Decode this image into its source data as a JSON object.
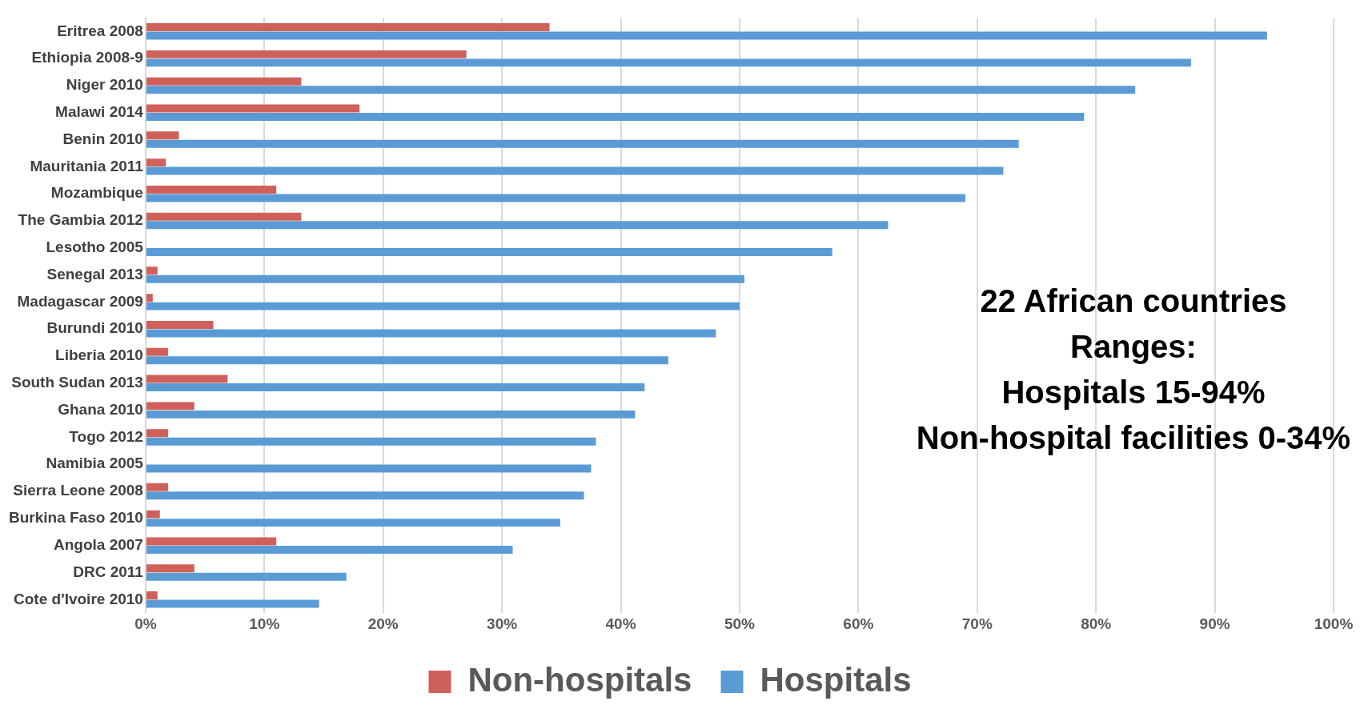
{
  "chart_data": {
    "type": "bar",
    "orientation": "horizontal",
    "categories": [
      "Eritrea 2008",
      "Ethiopia 2008-9",
      "Niger 2010",
      "Malawi 2014",
      "Benin 2010",
      "Mauritania 2011",
      "Mozambique",
      "The Gambia 2012",
      "Lesotho 2005",
      "Senegal 2013",
      "Madagascar 2009",
      "Burundi 2010",
      "Liberia 2010",
      "South Sudan 2013",
      "Ghana 2010",
      "Togo 2012",
      "Namibia 2005",
      "Sierra Leone 2008",
      "Burkina Faso 2010",
      "Angola 2007",
      "DRC 2011",
      "Cote d'Ivoire 2010"
    ],
    "series": [
      {
        "name": "Non-hospitals",
        "color": "#d0605a",
        "values": [
          34,
          27,
          13.1,
          18,
          2.8,
          1.7,
          11,
          13.1,
          0,
          1,
          0.6,
          5.7,
          1.9,
          6.9,
          4.1,
          1.9,
          0,
          1.9,
          1.2,
          11,
          4.1,
          1
        ]
      },
      {
        "name": "Hospitals",
        "color": "#5b9bd5",
        "values": [
          94.4,
          88,
          83.3,
          79,
          73.5,
          72.2,
          69,
          62.5,
          57.8,
          50.4,
          50,
          48,
          44,
          42,
          41.2,
          37.9,
          37.5,
          36.9,
          34.9,
          30.9,
          16.9,
          14.6
        ]
      }
    ],
    "xlim": [
      0,
      100
    ],
    "xticks": [
      {
        "value": 0,
        "label": "0%"
      },
      {
        "value": 10,
        "label": "10%"
      },
      {
        "value": 20,
        "label": "20%"
      },
      {
        "value": 30,
        "label": "30%"
      },
      {
        "value": 40,
        "label": "40%"
      },
      {
        "value": 50,
        "label": "50%"
      },
      {
        "value": 60,
        "label": "60%"
      },
      {
        "value": 70,
        "label": "70%"
      },
      {
        "value": 80,
        "label": "80%"
      },
      {
        "value": 90,
        "label": "90%"
      },
      {
        "value": 100,
        "label": "100%"
      }
    ],
    "grid": "x",
    "legend": "bottom",
    "annotations": [
      "22 African countries",
      "Ranges:",
      "Hospitals 15-94%",
      "Non-hospital facilities 0-34%"
    ]
  }
}
